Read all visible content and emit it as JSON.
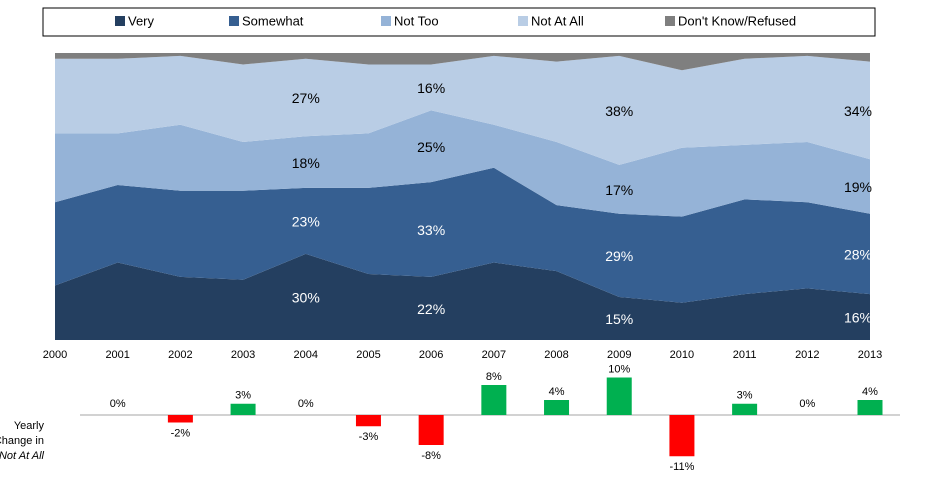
{
  "chart_data": [
    {
      "type": "stacked_area",
      "x": [
        2000,
        2001,
        2002,
        2003,
        2004,
        2005,
        2006,
        2007,
        2008,
        2009,
        2010,
        2011,
        2012,
        2013
      ],
      "xlim": [
        2000,
        2013
      ],
      "ylim": [
        0,
        100
      ],
      "legend": "top",
      "series": [
        {
          "name": "Very",
          "color": "#243f60",
          "label_color": "#ffffff",
          "values": [
            19,
            27,
            22,
            21,
            30,
            23,
            22,
            27,
            24,
            15,
            13,
            16,
            18,
            16
          ],
          "value_labels": [
            null,
            null,
            null,
            null,
            "30%",
            null,
            "22%",
            null,
            null,
            "15%",
            null,
            null,
            null,
            "16%"
          ]
        },
        {
          "name": "Somewhat",
          "color": "#365f91",
          "label_color": "#ffffff",
          "values": [
            29,
            27,
            30,
            31,
            23,
            30,
            33,
            33,
            23,
            29,
            30,
            33,
            30,
            28
          ],
          "value_labels": [
            null,
            null,
            null,
            null,
            "23%",
            null,
            "33%",
            null,
            null,
            "29%",
            null,
            null,
            null,
            "28%"
          ]
        },
        {
          "name": "Not Too",
          "color": "#95b3d7",
          "label_color": "#000000",
          "values": [
            24,
            18,
            23,
            17,
            18,
            19,
            25,
            15,
            22,
            17,
            24,
            19,
            21,
            19
          ],
          "value_labels": [
            null,
            null,
            null,
            null,
            "18%",
            null,
            "25%",
            null,
            null,
            "17%",
            null,
            null,
            null,
            "19%"
          ]
        },
        {
          "name": "Not At All",
          "color": "#b9cde5",
          "label_color": "#000000",
          "values": [
            26,
            26,
            24,
            27,
            27,
            24,
            16,
            24,
            28,
            38,
            27,
            30,
            30,
            34
          ],
          "value_labels": [
            null,
            null,
            null,
            null,
            "27%",
            null,
            "16%",
            null,
            null,
            "38%",
            null,
            null,
            null,
            "34%"
          ]
        },
        {
          "name": "Don't Know/Refused",
          "color": "#7f7f7f",
          "label_color": "#000000",
          "values": [
            2,
            2,
            1,
            4,
            2,
            4,
            4,
            1,
            3,
            1,
            6,
            2,
            1,
            3
          ],
          "value_labels": [
            null,
            null,
            null,
            null,
            null,
            null,
            null,
            null,
            null,
            null,
            null,
            null,
            null,
            null
          ]
        }
      ]
    },
    {
      "type": "bar",
      "ylabel": [
        "Yearly",
        "Change in",
        "Not At All"
      ],
      "ylabel_italic_line": 2,
      "x": [
        2001,
        2002,
        2003,
        2004,
        2005,
        2006,
        2007,
        2008,
        2009,
        2010,
        2011,
        2012,
        2013
      ],
      "values": [
        0,
        -2,
        3,
        0,
        -3,
        -8,
        8,
        4,
        10,
        -11,
        3,
        0,
        4
      ],
      "value_labels": [
        "0%",
        "-2%",
        "3%",
        "0%",
        "-3%",
        "-8%",
        "8%",
        "4%",
        "10%",
        "-11%",
        "3%",
        "0%",
        "4%"
      ],
      "ylim": [
        -12,
        12
      ],
      "positive_color": "#00b050",
      "negative_color": "#ff0000"
    }
  ]
}
